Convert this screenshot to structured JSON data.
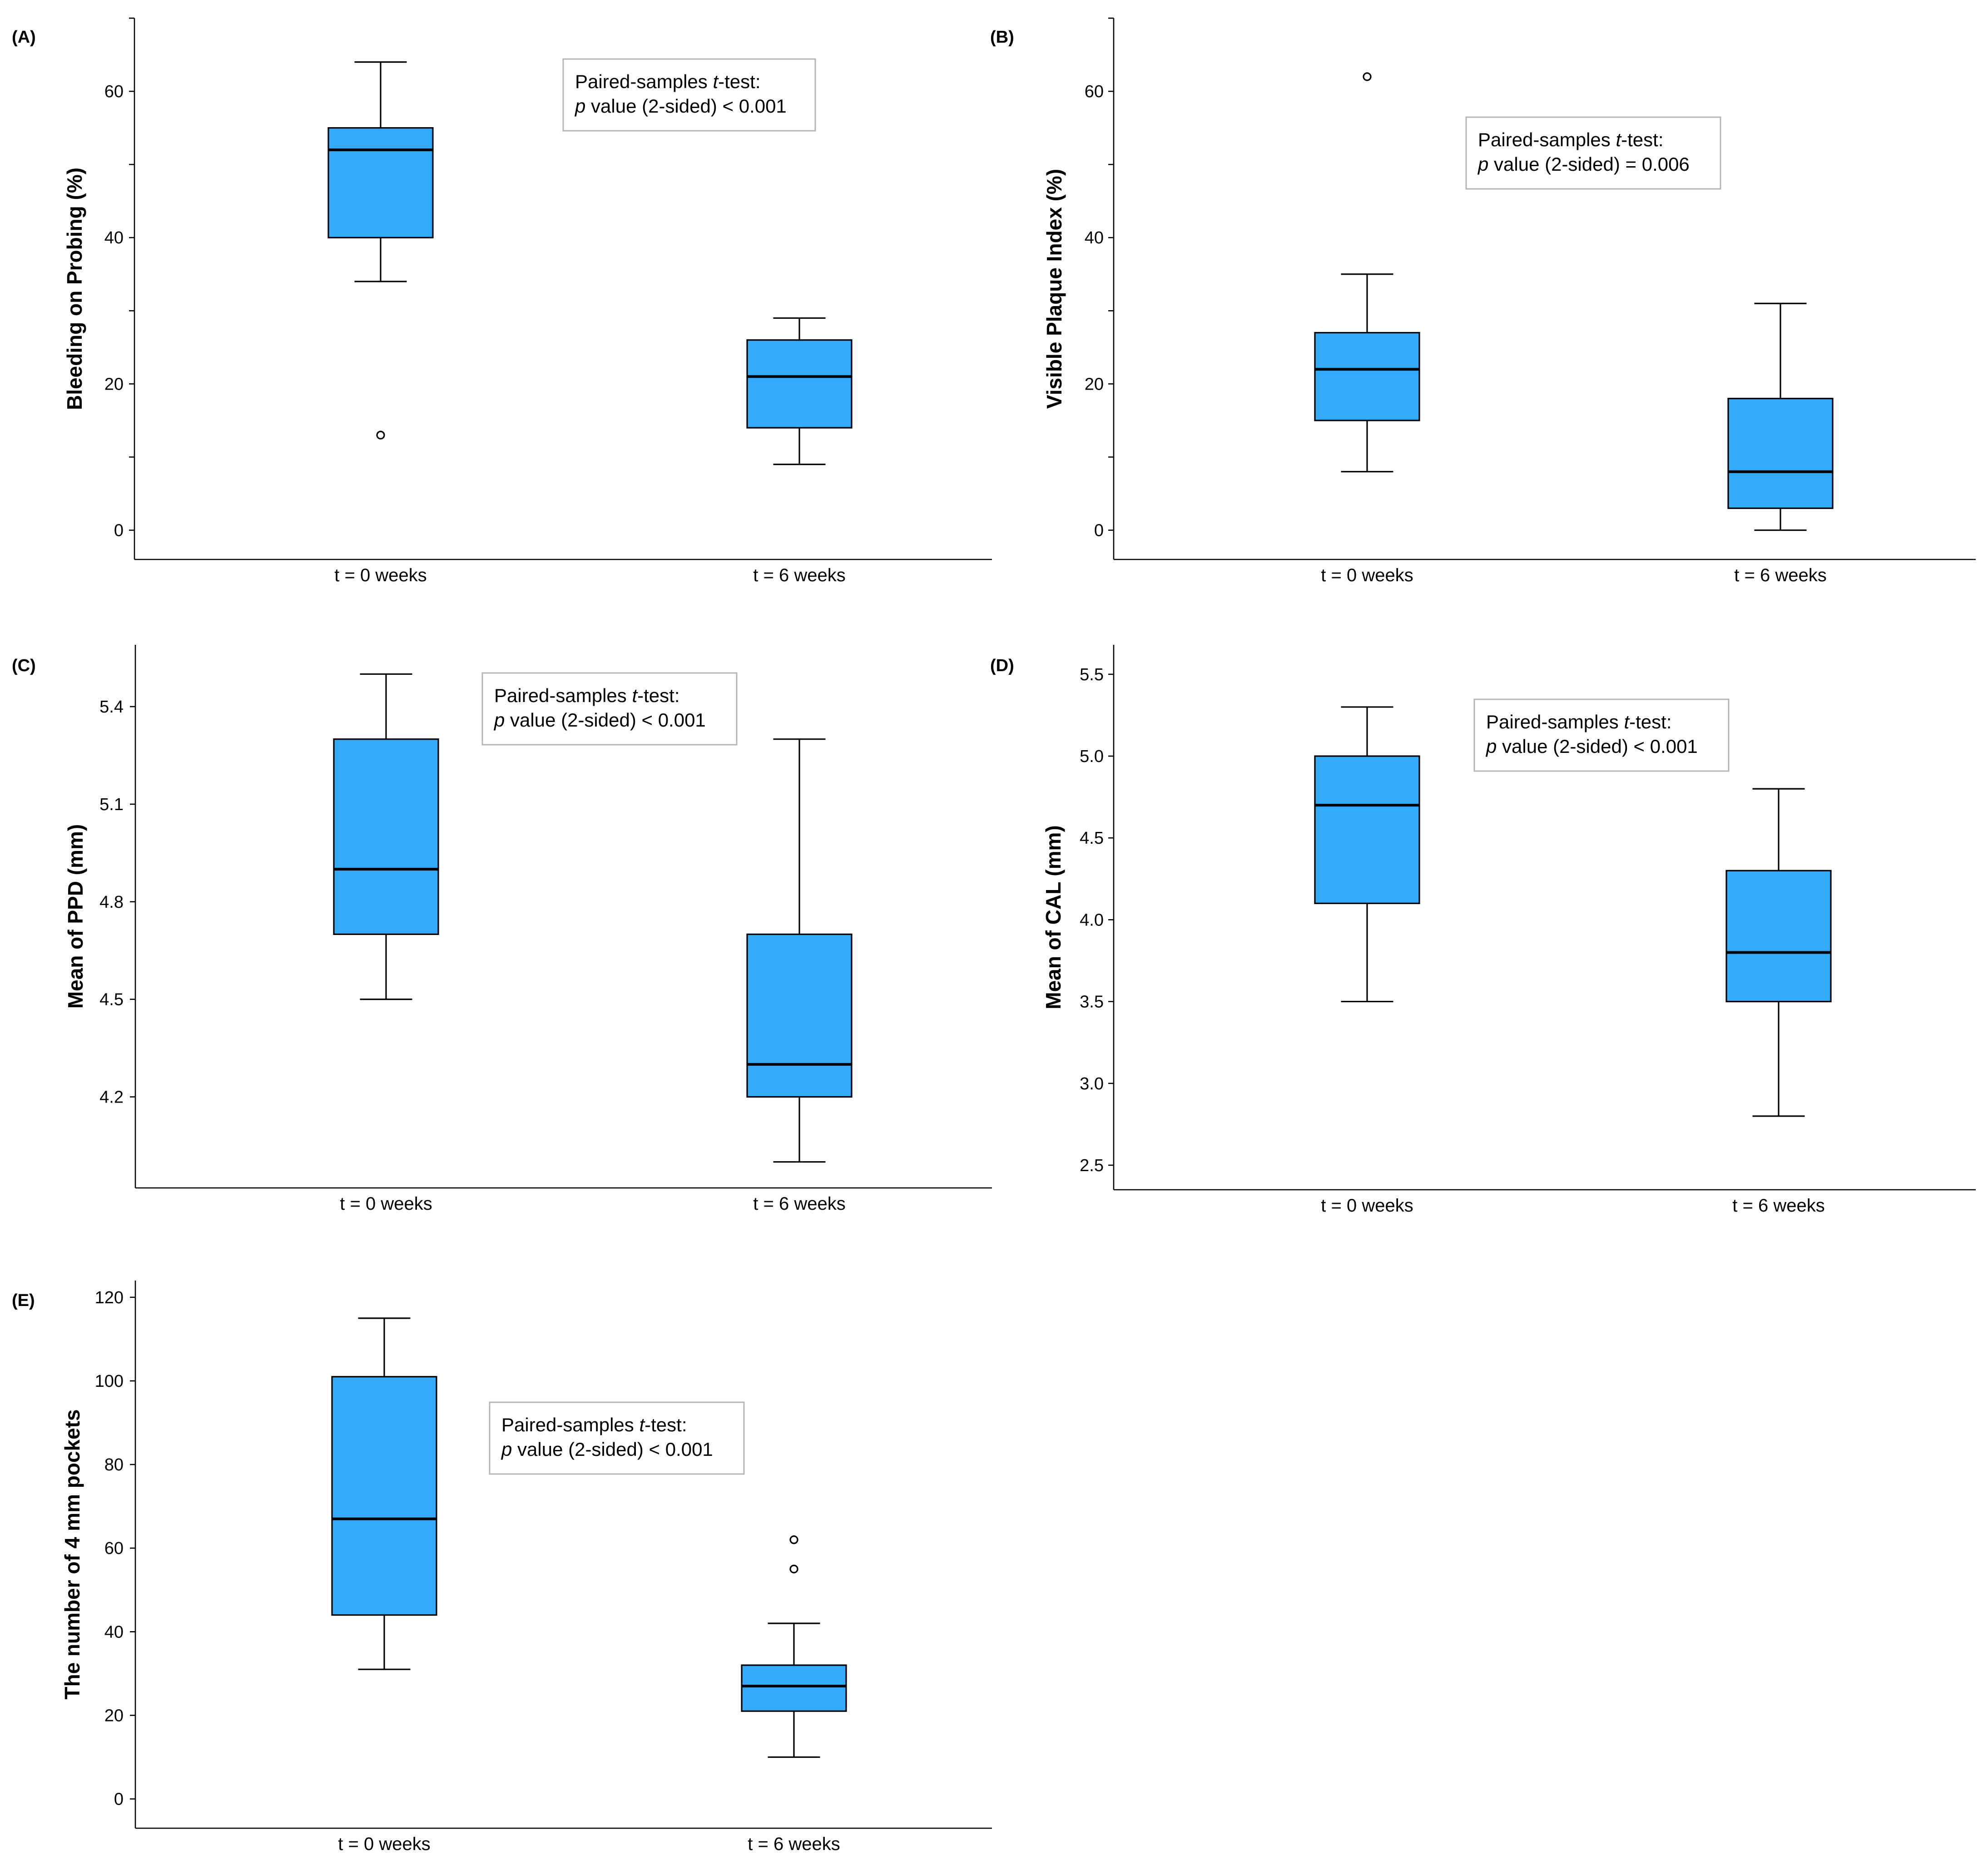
{
  "chart_data": [
    {
      "type": "box",
      "panel": "(A)",
      "ylabel": "Bleeding on Probing (%)",
      "ylim": [
        -4,
        70
      ],
      "yticks": [
        0,
        20,
        40,
        60
      ],
      "minor_ticks": [
        10,
        30,
        50,
        70
      ],
      "categories": [
        "t = 0 weeks",
        "t = 6 weeks"
      ],
      "boxes": [
        {
          "category": "t = 0 weeks",
          "min": 34,
          "q1": 40,
          "median": 52,
          "q3": 55,
          "max": 64,
          "outliers": [
            13
          ]
        },
        {
          "category": "t = 6 weeks",
          "min": 9,
          "q1": 14,
          "median": 21,
          "q3": 26,
          "max": 29,
          "outliers": []
        }
      ],
      "annotation": {
        "line1": "Paired-samples ",
        "line1_italic": "t",
        "line1_end": "-test:",
        "line2_italic": "p",
        "line2": " value (2-sided) < 0.001"
      }
    },
    {
      "type": "box",
      "panel": "(B)",
      "ylabel": "Visible Plaque Index (%)",
      "ylim": [
        -4,
        70
      ],
      "yticks": [
        0,
        20,
        40,
        60
      ],
      "minor_ticks": [
        10,
        30,
        50,
        70
      ],
      "categories": [
        "t = 0 weeks",
        "t = 6 weeks"
      ],
      "boxes": [
        {
          "category": "t = 0 weeks",
          "min": 8,
          "q1": 15,
          "median": 22,
          "q3": 27,
          "max": 35,
          "outliers": [
            62
          ]
        },
        {
          "category": "t = 6 weeks",
          "min": 0,
          "q1": 3,
          "median": 8,
          "q3": 18,
          "max": 31,
          "outliers": []
        }
      ],
      "annotation": {
        "line1": "Paired-samples ",
        "line1_italic": "t",
        "line1_end": "-test:",
        "line2_italic": "p",
        "line2": " value (2-sided) = 0.006"
      }
    },
    {
      "type": "box",
      "panel": "(C)",
      "ylabel": "Mean of PPD (mm)",
      "ylim": [
        3.92,
        5.59
      ],
      "yticks": [
        "4.2",
        "4.5",
        "4.8",
        "5.1",
        "5.4"
      ],
      "minor_ticks": [],
      "categories": [
        "t = 0 weeks",
        "t = 6 weeks"
      ],
      "boxes": [
        {
          "category": "t = 0 weeks",
          "min": 4.5,
          "q1": 4.7,
          "median": 4.9,
          "q3": 5.3,
          "max": 5.5,
          "outliers": []
        },
        {
          "category": "t = 6 weeks",
          "min": 4.0,
          "q1": 4.2,
          "median": 4.3,
          "q3": 4.7,
          "max": 5.3,
          "outliers": []
        }
      ],
      "annotation": {
        "line1": "Paired-samples ",
        "line1_italic": "t",
        "line1_end": "-test:",
        "line2_italic": "p",
        "line2": " value (2-sided) < 0.001"
      }
    },
    {
      "type": "box",
      "panel": "(D)",
      "ylabel": "Mean of CAL (mm)",
      "ylim": [
        2.35,
        5.68
      ],
      "yticks": [
        "2.5",
        "3.0",
        "3.5",
        "4.0",
        "4.5",
        "5.0",
        "5.5"
      ],
      "minor_ticks": [],
      "categories": [
        "t = 0 weeks",
        "t = 6 weeks"
      ],
      "boxes": [
        {
          "category": "t = 0 weeks",
          "min": 3.5,
          "q1": 4.1,
          "median": 4.7,
          "q3": 5.0,
          "max": 5.3,
          "outliers": []
        },
        {
          "category": "t = 6 weeks",
          "min": 2.8,
          "q1": 3.5,
          "median": 3.8,
          "q3": 4.3,
          "max": 4.8,
          "outliers": []
        }
      ],
      "annotation": {
        "line1": "Paired-samples ",
        "line1_italic": "t",
        "line1_end": "-test:",
        "line2_italic": "p",
        "line2": " value (2-sided) < 0.001"
      }
    },
    {
      "type": "box",
      "panel": "(E)",
      "ylabel": "The number of  4 mm pockets",
      "ylim": [
        -7,
        124
      ],
      "yticks": [
        0,
        20,
        40,
        60,
        80,
        100,
        120
      ],
      "minor_ticks": [],
      "categories": [
        "t = 0 weeks",
        "t = 6 weeks"
      ],
      "boxes": [
        {
          "category": "t = 0 weeks",
          "min": 31,
          "q1": 44,
          "median": 67,
          "q3": 101,
          "max": 115,
          "outliers": []
        },
        {
          "category": "t = 6 weeks",
          "min": 10,
          "q1": 21,
          "median": 27,
          "q3": 32,
          "max": 42,
          "outliers": [
            55,
            62
          ]
        }
      ],
      "annotation": {
        "line1": "Paired-samples ",
        "line1_italic": "t",
        "line1_end": "-test:",
        "line2_italic": "p",
        "line2": " value (2-sided) < 0.001"
      }
    }
  ]
}
